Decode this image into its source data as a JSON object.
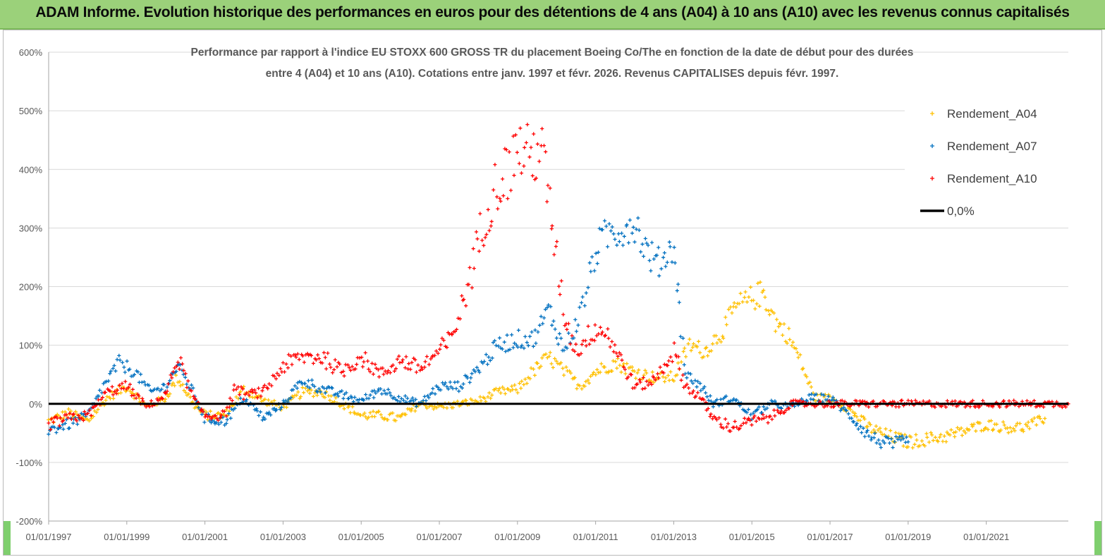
{
  "banner": {
    "title": "ADAM Informe. Evolution historique des performances en euros pour des détentions de 4 ans (A04) à 10 ans (A10) avec les revenus connus capitalisés"
  },
  "colors": {
    "banner": "#9bd17a",
    "A04": "#ffc000",
    "A07": "#0070c0",
    "A10": "#ff0000",
    "zero": "#000000",
    "grid": "#d9d9d9"
  },
  "chart_data": {
    "type": "scatter",
    "title_lines": [
      "Performance par rapport à l'indice EU STOXX 600 GROSS TR  du placement Boeing Co/The en fonction de la date de début pour des durées",
      "entre 4 (A04) et 10 ans (A10).  Cotations entre janv. 1997 et févr. 2026. Revenus CAPITALISES depuis févr. 1997."
    ],
    "y_ticks": [
      "600%",
      "500%",
      "400%",
      "300%",
      "200%",
      "100%",
      "0%",
      "-100%",
      "-200%"
    ],
    "y_tick_values": [
      600,
      500,
      400,
      300,
      200,
      100,
      0,
      -100,
      -200
    ],
    "ylim": [
      -200,
      600
    ],
    "x_ticks": [
      "01/01/1997",
      "01/01/1999",
      "01/01/2001",
      "01/01/2003",
      "01/01/2005",
      "01/01/2007",
      "01/01/2009",
      "01/01/2011",
      "01/01/2013",
      "01/01/2015",
      "01/01/2017",
      "01/01/2019",
      "01/01/2021"
    ],
    "x_tick_values": [
      1997,
      1999,
      2001,
      2003,
      2005,
      2007,
      2009,
      2011,
      2013,
      2015,
      2017,
      2019,
      2021
    ],
    "xlim": [
      1997,
      2023.1
    ],
    "legend": [
      {
        "label": "Rendement_A04",
        "color": "#ffc000",
        "marker": "+"
      },
      {
        "label": "Rendement_A07",
        "color": "#0070c0",
        "marker": "+"
      },
      {
        "label": "Rendement_A10",
        "color": "#ff0000",
        "marker": "+"
      },
      {
        "label": "0,0%",
        "color": "#000000",
        "marker": "line"
      }
    ],
    "legend_position": "top-right",
    "series": [
      {
        "name": "Rendement_A04",
        "color": "#ffc000",
        "x": [
          1997.0,
          1997.5,
          1998.0,
          1998.5,
          1999.0,
          1999.5,
          2000.0,
          2000.3,
          2000.7,
          2001.0,
          2001.5,
          2002.0,
          2002.5,
          2003.0,
          2003.5,
          2004.0,
          2004.5,
          2005.0,
          2005.5,
          2006.0,
          2006.5,
          2007.0,
          2007.5,
          2008.0,
          2008.5,
          2009.0,
          2009.4,
          2009.8,
          2010.2,
          2010.6,
          2011.0,
          2011.5,
          2012.0,
          2012.5,
          2013.0,
          2013.4,
          2013.8,
          2014.2,
          2014.6,
          2015.0,
          2015.3,
          2015.6,
          2015.9,
          2016.2,
          2016.6,
          2017.0,
          2017.5,
          2018.0,
          2018.5,
          2019.0,
          2019.5,
          2020.0,
          2020.5,
          2021.0,
          2021.5,
          2022.0,
          2022.5
        ],
        "y": [
          -30,
          -15,
          -30,
          10,
          30,
          -5,
          10,
          45,
          0,
          -20,
          -20,
          25,
          5,
          -5,
          20,
          20,
          0,
          -20,
          -20,
          -25,
          0,
          -5,
          0,
          5,
          20,
          25,
          55,
          80,
          55,
          30,
          55,
          70,
          55,
          45,
          45,
          100,
          90,
          120,
          165,
          180,
          190,
          140,
          120,
          80,
          10,
          10,
          -10,
          -40,
          -55,
          -65,
          -60,
          -55,
          -45,
          -35,
          -40,
          -40,
          -25
        ]
      },
      {
        "name": "Rendement_A07",
        "color": "#0070c0",
        "x": [
          1997.0,
          1997.5,
          1998.0,
          1998.4,
          1998.8,
          1999.2,
          1999.6,
          2000.0,
          2000.3,
          2000.7,
          2001.0,
          2001.5,
          2002.0,
          2002.5,
          2003.0,
          2003.5,
          2004.0,
          2004.5,
          2005.0,
          2005.5,
          2006.0,
          2006.5,
          2007.0,
          2007.5,
          2008.0,
          2008.5,
          2009.0,
          2009.4,
          2009.8,
          2010.2,
          2010.6,
          2011.0,
          2011.3,
          2011.7,
          2012.0,
          2012.3,
          2012.6,
          2013.0,
          2013.3,
          2013.7,
          2014.0,
          2014.5,
          2015.0,
          2015.5,
          2016.0,
          2016.5,
          2017.0,
          2017.5,
          2018.0,
          2018.5,
          2019.0
        ],
        "y": [
          -45,
          -35,
          -20,
          30,
          70,
          55,
          20,
          30,
          65,
          20,
          -25,
          -30,
          10,
          -25,
          0,
          40,
          25,
          15,
          5,
          25,
          10,
          0,
          30,
          30,
          60,
          100,
          110,
          110,
          160,
          90,
          150,
          260,
          290,
          300,
          310,
          260,
          240,
          270,
          50,
          30,
          0,
          10,
          -20,
          0,
          -5,
          10,
          10,
          -20,
          -55,
          -70,
          -65
        ]
      },
      {
        "name": "Rendement_A10",
        "color": "#ff0000",
        "x": [
          1997.0,
          1997.5,
          1998.0,
          1998.5,
          1999.0,
          1999.5,
          2000.0,
          2000.3,
          2000.7,
          2001.0,
          2001.5,
          2001.8,
          2002.0,
          2002.5,
          2003.0,
          2003.5,
          2004.0,
          2004.5,
          2005.0,
          2005.5,
          2006.0,
          2006.5,
          2007.0,
          2007.3,
          2007.6,
          2007.9,
          2008.2,
          2008.5,
          2008.8,
          2009.0,
          2009.3,
          2009.6,
          2009.9,
          2010.2,
          2010.5,
          2011.0,
          2011.3,
          2011.6,
          2012.0,
          2012.5,
          2013.0,
          2013.3,
          2013.7,
          2014.0,
          2014.5,
          2015.0,
          2015.4,
          2015.8,
          2016.0,
          2016.5,
          2017.0,
          2018.0,
          2019.0,
          2020.0,
          2021.0,
          2022.0,
          2023.1
        ],
        "y": [
          -35,
          -25,
          -20,
          20,
          30,
          -5,
          15,
          80,
          10,
          -20,
          -20,
          30,
          15,
          20,
          65,
          80,
          80,
          55,
          80,
          50,
          75,
          60,
          90,
          110,
          170,
          250,
          330,
          380,
          400,
          440,
          420,
          440,
          300,
          150,
          90,
          130,
          120,
          80,
          30,
          40,
          90,
          30,
          10,
          -25,
          -40,
          -30,
          -25,
          -10,
          0,
          0,
          0,
          0,
          0,
          0,
          0,
          0,
          0
        ]
      },
      {
        "name": "0,0%",
        "color": "#000000",
        "x": [
          1997.0,
          2023.1
        ],
        "y": [
          0,
          0
        ]
      }
    ]
  }
}
